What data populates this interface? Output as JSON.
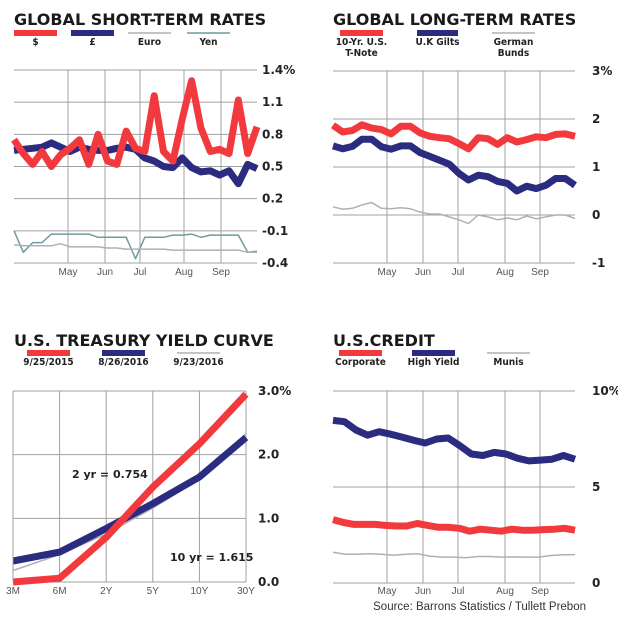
{
  "colors": {
    "red": "#f23a3e",
    "navy": "#2b2b80",
    "gray": "#b0b0b0",
    "teal": "#6f9c9c",
    "grid": "#a0a0a0"
  },
  "source": "Source: Barrons Statistics / Tullett Prebon",
  "chart_data": [
    {
      "type": "line",
      "title": "GLOBAL SHORT-TERM RATES",
      "ylim": [
        -0.4,
        1.4
      ],
      "yticks": [
        "1.4%",
        "1.1",
        "0.8",
        "0.5",
        "0.2",
        "-0.1",
        "-0.4"
      ],
      "ytick_values": [
        1.4,
        1.1,
        0.8,
        0.5,
        0.2,
        -0.1,
        -0.4
      ],
      "xticks": [
        "May",
        "Jun",
        "Jul",
        "Aug",
        "Sep"
      ],
      "grid": true,
      "series": [
        {
          "name": "$",
          "color": "#f23a3e",
          "values": [
            0.75,
            0.62,
            0.52,
            0.64,
            0.5,
            0.61,
            0.67,
            0.75,
            0.52,
            0.8,
            0.55,
            0.52,
            0.83,
            0.67,
            0.64,
            1.16,
            0.64,
            0.55,
            0.94,
            1.3,
            0.86,
            0.64,
            0.66,
            0.62,
            1.12,
            0.62,
            0.87
          ]
        },
        {
          "name": "£",
          "color": "#2b2b80",
          "values": [
            0.65,
            0.66,
            0.67,
            0.68,
            0.72,
            0.68,
            0.64,
            0.68,
            0.66,
            0.65,
            0.65,
            0.67,
            0.68,
            0.66,
            0.58,
            0.55,
            0.5,
            0.49,
            0.58,
            0.49,
            0.45,
            0.46,
            0.42,
            0.46,
            0.34,
            0.52,
            0.48
          ]
        },
        {
          "name": "Euro",
          "color": "#b0b0b0",
          "values": [
            -0.23,
            -0.24,
            -0.24,
            -0.24,
            -0.24,
            -0.22,
            -0.25,
            -0.25,
            -0.25,
            -0.25,
            -0.26,
            -0.26,
            -0.27,
            -0.27,
            -0.27,
            -0.27,
            -0.27,
            -0.28,
            -0.28,
            -0.28,
            -0.28,
            -0.28,
            -0.28,
            -0.28,
            -0.28,
            -0.3,
            -0.3
          ]
        },
        {
          "name": "Yen",
          "color": "#6f9c9c",
          "values": [
            -0.1,
            -0.3,
            -0.21,
            -0.21,
            -0.13,
            -0.13,
            -0.13,
            -0.13,
            -0.13,
            -0.16,
            -0.16,
            -0.16,
            -0.16,
            -0.36,
            -0.16,
            -0.16,
            -0.16,
            -0.14,
            -0.14,
            -0.13,
            -0.16,
            -0.14,
            -0.14,
            -0.14,
            -0.14,
            -0.3,
            -0.29
          ]
        }
      ]
    },
    {
      "type": "line",
      "title": "GLOBAL LONG-TERM RATES",
      "ylim": [
        -1,
        3
      ],
      "yticks": [
        "3%",
        "2",
        "1",
        "0",
        "-1"
      ],
      "ytick_values": [
        3,
        2,
        1,
        0,
        -1
      ],
      "xticks": [
        "May",
        "Jun",
        "Jul",
        "Aug",
        "Sep"
      ],
      "grid": true,
      "series": [
        {
          "name": "10-Yr. U.S. T-Note",
          "color": "#f23a3e",
          "values": [
            1.87,
            1.73,
            1.76,
            1.88,
            1.81,
            1.78,
            1.69,
            1.85,
            1.85,
            1.71,
            1.64,
            1.61,
            1.59,
            1.49,
            1.38,
            1.61,
            1.59,
            1.47,
            1.61,
            1.52,
            1.57,
            1.63,
            1.61,
            1.68,
            1.69,
            1.64
          ]
        },
        {
          "name": "U.K Gilts",
          "color": "#2b2b80",
          "values": [
            1.44,
            1.38,
            1.43,
            1.58,
            1.58,
            1.42,
            1.37,
            1.44,
            1.44,
            1.3,
            1.22,
            1.14,
            1.06,
            0.87,
            0.73,
            0.83,
            0.8,
            0.7,
            0.66,
            0.5,
            0.6,
            0.55,
            0.62,
            0.76,
            0.76,
            0.62
          ]
        },
        {
          "name": "German Bunds",
          "color": "#b0b0b0",
          "values": [
            0.17,
            0.12,
            0.14,
            0.21,
            0.26,
            0.14,
            0.13,
            0.15,
            0.13,
            0.06,
            0.02,
            0.02,
            -0.04,
            -0.1,
            -0.18,
            0.0,
            -0.04,
            -0.1,
            -0.06,
            -0.1,
            -0.02,
            -0.08,
            -0.04,
            0.0,
            0.0,
            -0.07
          ]
        }
      ]
    },
    {
      "type": "line",
      "title": "U.S. TREASURY YIELD CURVE",
      "ylim": [
        0,
        3
      ],
      "yticks": [
        "3.0%",
        "2.0",
        "1.0",
        "0.0"
      ],
      "ytick_values": [
        3,
        2,
        1,
        0
      ],
      "categories": [
        "3M",
        "6M",
        "2Y",
        "5Y",
        "10Y",
        "30Y"
      ],
      "grid": true,
      "annotations": [
        "2 yr = 0.754",
        "10 yr = 1.615"
      ],
      "series": [
        {
          "name": "9/25/2015",
          "color": "#f23a3e",
          "values": [
            0.0,
            0.06,
            0.7,
            1.49,
            2.17,
            2.95
          ]
        },
        {
          "name": "8/26/2016",
          "color": "#2b2b80",
          "values": [
            0.33,
            0.47,
            0.84,
            1.23,
            1.65,
            2.27
          ]
        },
        {
          "name": "9/23/2016",
          "color": "#b0b0b0",
          "values": [
            0.18,
            0.43,
            0.754,
            1.16,
            1.615,
            2.33
          ]
        }
      ]
    },
    {
      "type": "line",
      "title": "U.S.CREDIT",
      "ylim": [
        0,
        10
      ],
      "yticks": [
        "10%",
        "5",
        "0"
      ],
      "ytick_values": [
        10,
        5,
        0
      ],
      "xticks": [
        "May",
        "Jun",
        "Jul",
        "Aug",
        "Sep"
      ],
      "grid": true,
      "series": [
        {
          "name": "Corporate",
          "color": "#f23a3e",
          "values": [
            3.3,
            3.15,
            3.05,
            3.05,
            3.05,
            3.0,
            2.97,
            2.97,
            3.1,
            3.0,
            2.9,
            2.9,
            2.85,
            2.7,
            2.8,
            2.75,
            2.7,
            2.8,
            2.75,
            2.75,
            2.78,
            2.8,
            2.85,
            2.75
          ]
        },
        {
          "name": "High Yield",
          "color": "#2b2b80",
          "values": [
            8.47,
            8.4,
            7.97,
            7.7,
            7.88,
            7.75,
            7.6,
            7.43,
            7.29,
            7.5,
            7.55,
            7.15,
            6.72,
            6.64,
            6.8,
            6.72,
            6.5,
            6.36,
            6.4,
            6.45,
            6.64,
            6.45
          ]
        },
        {
          "name": "Munis",
          "color": "#b0b0b0",
          "values": [
            1.6,
            1.5,
            1.5,
            1.52,
            1.5,
            1.45,
            1.5,
            1.52,
            1.4,
            1.35,
            1.35,
            1.32,
            1.38,
            1.38,
            1.35,
            1.36,
            1.35,
            1.35,
            1.43,
            1.47,
            1.48
          ]
        }
      ]
    }
  ]
}
